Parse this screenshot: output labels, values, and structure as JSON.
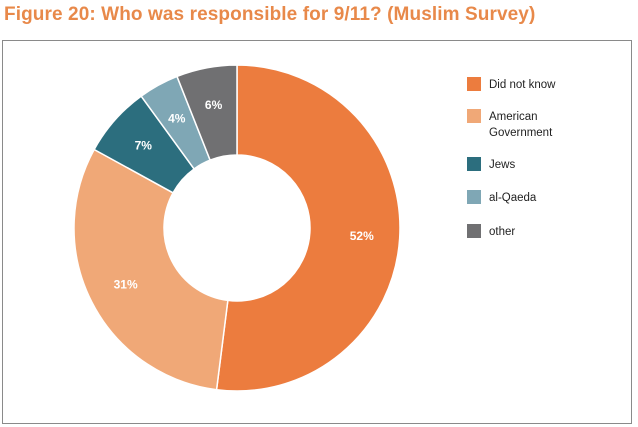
{
  "chart_data": {
    "type": "pie",
    "variant": "donut",
    "title": "Figure 20: Who was responsible for 9/11? (Muslim Survey)",
    "categories": [
      "Did not know",
      "American Government",
      "Jews",
      "al-Qaeda",
      "other"
    ],
    "legend_lines": [
      [
        "Did not know"
      ],
      [
        "American",
        "Government"
      ],
      [
        "Jews"
      ],
      [
        "al-Qaeda"
      ],
      [
        "other"
      ]
    ],
    "values": [
      52,
      31,
      7,
      4,
      6
    ],
    "labels": [
      "52%",
      "31%",
      "7%",
      "4%",
      "6%"
    ],
    "colors": [
      "#EC7C3E",
      "#F0A877",
      "#2C6E7E",
      "#7FA7B5",
      "#707072"
    ],
    "legend_position": "right"
  }
}
